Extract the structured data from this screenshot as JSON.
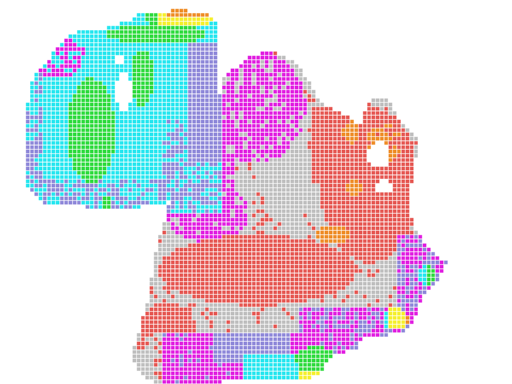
{
  "image": {
    "kind": "spatial cluster map",
    "background": "#ffffff"
  },
  "clusters": [
    {
      "key": "magenta",
      "color": "#e01ae0"
    },
    {
      "key": "gray",
      "color": "#bdbdbd"
    },
    {
      "key": "red",
      "color": "#e5544f"
    },
    {
      "key": "cyan",
      "color": "#22e6ef"
    },
    {
      "key": "purple",
      "color": "#8c86d8"
    },
    {
      "key": "green",
      "color": "#2ada3a"
    },
    {
      "key": "orange",
      "color": "#ee8a22"
    },
    {
      "key": "yellow",
      "color": "#f5ef2a"
    }
  ]
}
